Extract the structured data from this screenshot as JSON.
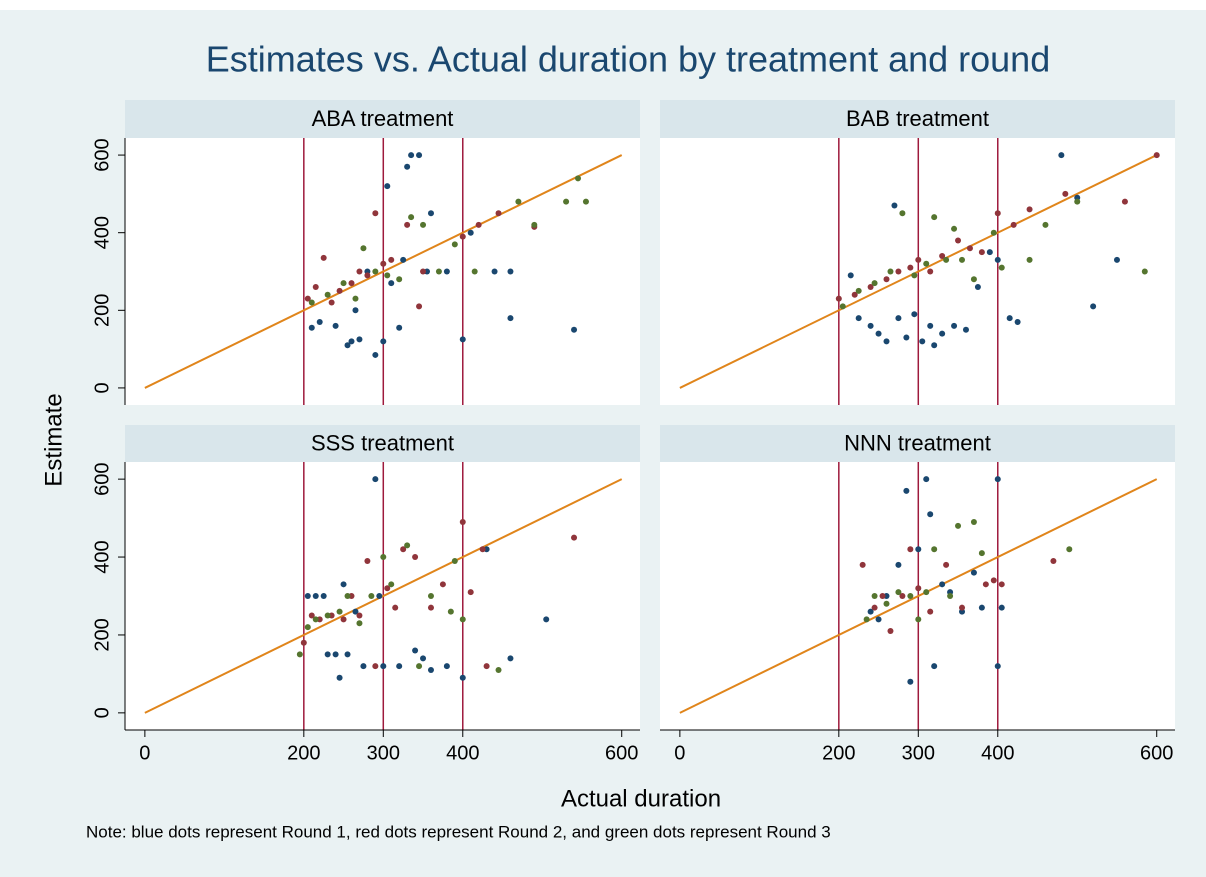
{
  "chart_data": {
    "type": "scatter",
    "title": "Estimates vs. Actual duration by treatment and round",
    "xlabel": "Actual duration",
    "ylabel": "Estimate",
    "note": "Note: blue dots represent Round 1, red dots represent Round 2, and green dots represent Round 3",
    "xlim": [
      -25,
      623
    ],
    "ylim": [
      -44,
      644
    ],
    "xticks": [
      0,
      200,
      300,
      400,
      600
    ],
    "yticks": [
      0,
      200,
      400,
      600
    ],
    "vlines": [
      200,
      300,
      400
    ],
    "vline_color": "#9e1a3c",
    "reference_line": {
      "x": [
        0,
        600
      ],
      "y": [
        0,
        600
      ],
      "color": "#e0851b"
    },
    "panels": [
      {
        "title": "ABA treatment",
        "series": [
          {
            "color": "#1a476f",
            "x": [
              210,
              220,
              240,
              255,
              260,
              270,
              280,
              290,
              300,
              305,
              310,
              320,
              330,
              335,
              345,
              355,
              360,
              380,
              400,
              410,
              440,
              460,
              460,
              540,
              325,
              265
            ],
            "y": [
              155,
              170,
              160,
              110,
              120,
              125,
              300,
              85,
              120,
              520,
              270,
              155,
              570,
              600,
              600,
              300,
              450,
              300,
              125,
              400,
              300,
              300,
              180,
              150,
              330,
              200
            ]
          },
          {
            "color": "#90353b",
            "x": [
              205,
              215,
              225,
              235,
              245,
              260,
              270,
              280,
              290,
              300,
              310,
              330,
              345,
              350,
              400,
              420,
              445,
              490
            ],
            "y": [
              230,
              260,
              335,
              220,
              250,
              270,
              300,
              290,
              450,
              320,
              330,
              420,
              210,
              300,
              390,
              420,
              450,
              415
            ]
          },
          {
            "color": "#55752f",
            "x": [
              210,
              230,
              250,
              265,
              275,
              290,
              305,
              320,
              335,
              350,
              370,
              390,
              415,
              470,
              490,
              530,
              545,
              555
            ],
            "y": [
              220,
              240,
              270,
              230,
              360,
              300,
              290,
              280,
              440,
              420,
              300,
              370,
              300,
              480,
              420,
              480,
              540,
              480
            ]
          }
        ]
      },
      {
        "title": "BAB treatment",
        "series": [
          {
            "color": "#1a476f",
            "x": [
              215,
              225,
              240,
              250,
              260,
              270,
              275,
              285,
              295,
              305,
              315,
              320,
              330,
              345,
              360,
              375,
              400,
              415,
              425,
              480,
              500,
              520,
              550,
              390
            ],
            "y": [
              290,
              180,
              160,
              140,
              120,
              470,
              180,
              130,
              190,
              120,
              160,
              110,
              140,
              160,
              150,
              260,
              330,
              180,
              170,
              600,
              490,
              210,
              330,
              350
            ]
          },
          {
            "color": "#90353b",
            "x": [
              200,
              220,
              240,
              260,
              275,
              290,
              300,
              315,
              330,
              350,
              365,
              380,
              400,
              420,
              440,
              485,
              560,
              600
            ],
            "y": [
              230,
              240,
              260,
              280,
              300,
              310,
              330,
              300,
              340,
              380,
              360,
              350,
              450,
              420,
              460,
              500,
              480,
              600
            ]
          },
          {
            "color": "#55752f",
            "x": [
              205,
              225,
              245,
              265,
              280,
              295,
              310,
              320,
              335,
              355,
              370,
              395,
              405,
              440,
              460,
              500,
              585,
              345
            ],
            "y": [
              210,
              250,
              270,
              300,
              450,
              290,
              320,
              440,
              330,
              330,
              280,
              400,
              310,
              330,
              420,
              480,
              300,
              410
            ]
          }
        ]
      },
      {
        "title": "SSS treatment",
        "series": [
          {
            "color": "#1a476f",
            "x": [
              205,
              215,
              225,
              230,
              240,
              245,
              250,
              255,
              265,
              275,
              290,
              295,
              300,
              320,
              340,
              350,
              360,
              380,
              400,
              430,
              460,
              505
            ],
            "y": [
              300,
              300,
              300,
              150,
              150,
              90,
              330,
              150,
              260,
              120,
              600,
              300,
              120,
              120,
              160,
              140,
              110,
              120,
              90,
              420,
              140,
              240
            ]
          },
          {
            "color": "#90353b",
            "x": [
              200,
              210,
              220,
              235,
              250,
              260,
              270,
              280,
              290,
              305,
              315,
              325,
              340,
              360,
              375,
              400,
              410,
              425,
              430,
              540
            ],
            "y": [
              180,
              250,
              240,
              250,
              240,
              300,
              250,
              390,
              120,
              320,
              270,
              420,
              400,
              270,
              330,
              490,
              310,
              420,
              120,
              450
            ]
          },
          {
            "color": "#55752f",
            "x": [
              195,
              205,
              215,
              230,
              245,
              255,
              270,
              285,
              300,
              310,
              330,
              345,
              360,
              385,
              400,
              445,
              390
            ],
            "y": [
              150,
              220,
              240,
              250,
              260,
              300,
              230,
              300,
              400,
              330,
              430,
              120,
              300,
              260,
              240,
              110,
              390
            ]
          }
        ]
      },
      {
        "title": "NNN treatment",
        "series": [
          {
            "color": "#1a476f",
            "x": [
              240,
              250,
              260,
              275,
              285,
              290,
              300,
              310,
              315,
              320,
              330,
              340,
              355,
              370,
              380,
              400,
              400,
              405
            ],
            "y": [
              260,
              240,
              300,
              380,
              570,
              80,
              420,
              600,
              510,
              120,
              330,
              310,
              260,
              360,
              270,
              600,
              120,
              270
            ]
          },
          {
            "color": "#90353b",
            "x": [
              230,
              245,
              255,
              265,
              280,
              290,
              300,
              315,
              335,
              355,
              385,
              395,
              405,
              470
            ],
            "y": [
              380,
              270,
              300,
              210,
              300,
              420,
              320,
              260,
              380,
              270,
              330,
              340,
              330,
              390
            ]
          },
          {
            "color": "#55752f",
            "x": [
              235,
              245,
              260,
              275,
              290,
              300,
              310,
              320,
              340,
              350,
              370,
              380,
              490
            ],
            "y": [
              240,
              300,
              280,
              310,
              300,
              240,
              310,
              420,
              300,
              480,
              490,
              410,
              420
            ]
          }
        ]
      }
    ]
  }
}
